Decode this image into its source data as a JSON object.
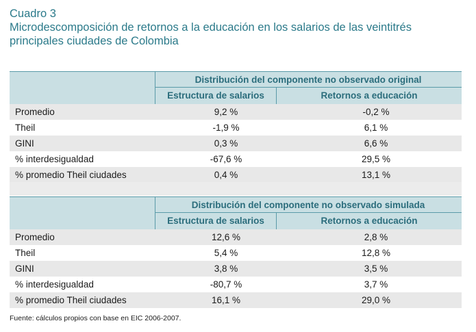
{
  "title": {
    "label": "Cuadro 3",
    "subtitle_line1": "Microdescomposición de retornos a la educación en los salarios de las veintitrés",
    "subtitle_line2": "principales ciudades de Colombia"
  },
  "tables": [
    {
      "group_title": "Distribución del componente no observado original",
      "col_a": "Estructura de salarios",
      "col_b": "Retornos a educación",
      "rows": [
        {
          "label": "Promedio",
          "a": "9,2 %",
          "b": "-0,2 %"
        },
        {
          "label": "Theil",
          "a": "-1,9 %",
          "b": "6,1 %"
        },
        {
          "label": "GINI",
          "a": "0,3 %",
          "b": "6,6 %"
        },
        {
          "label": "% interdesigualdad",
          "a": "-67,6 %",
          "b": "29,5 %"
        },
        {
          "label": "% promedio Theil ciudades",
          "a": "0,4 %",
          "b": "13,1 %"
        }
      ]
    },
    {
      "group_title": "Distribución del componente no observado simulada",
      "col_a": "Estructura de salarios",
      "col_b": "Retornos a educación",
      "rows": [
        {
          "label": "Promedio",
          "a": "12,6 %",
          "b": "2,8 %"
        },
        {
          "label": "Theil",
          "a": "5,4 %",
          "b": "12,8 %"
        },
        {
          "label": "GINI",
          "a": "3,8 %",
          "b": "3,5 %"
        },
        {
          "label": "% interdesigualdad",
          "a": "-80,7 %",
          "b": "3,7 %"
        },
        {
          "label": "% promedio Theil ciudades",
          "a": "16,1 %",
          "b": "29,0 %"
        }
      ]
    }
  ],
  "source": "Fuente: cálculos propios con base en EIC 2006-2007.",
  "colors": {
    "accent": "#2b7a8a",
    "header_bg": "#c9dfe3",
    "row_shade": "#e8e8e8"
  }
}
